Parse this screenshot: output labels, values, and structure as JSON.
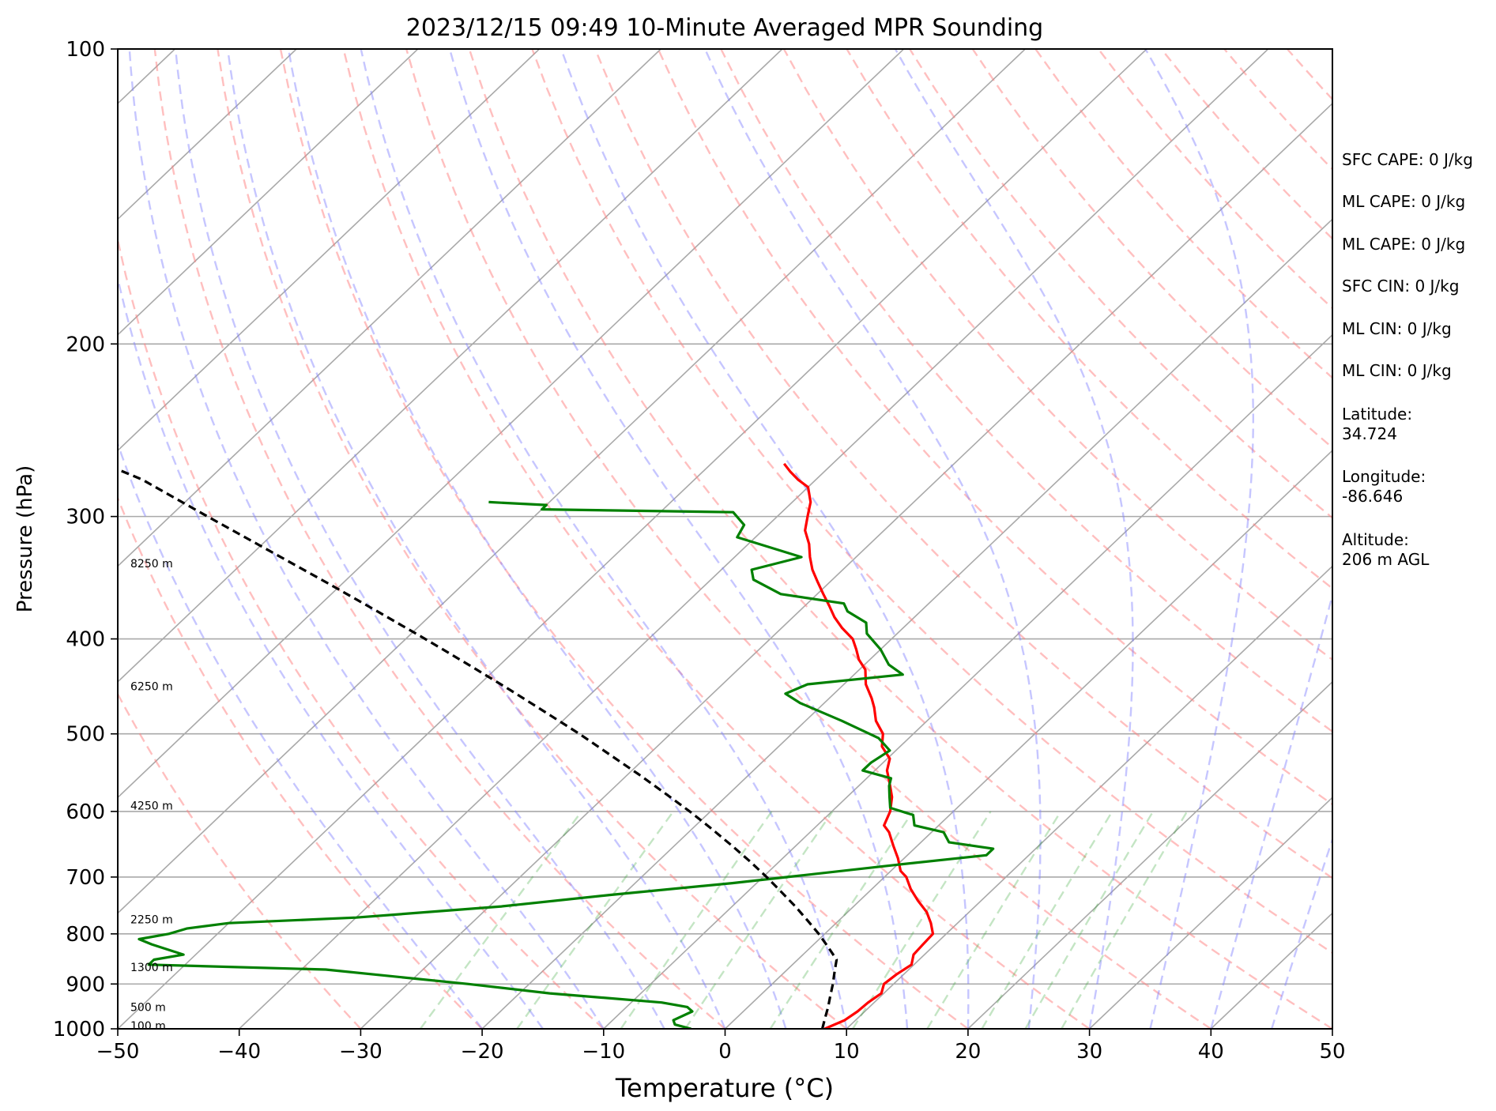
{
  "chart_data": {
    "type": "line",
    "title": "2023/12/15 09:49 10-Minute Averaged MPR Sounding",
    "xlabel": "Temperature (°C)",
    "ylabel": "Pressure (hPa)",
    "xlim": [
      -50,
      50
    ],
    "ylim": [
      1000,
      100
    ],
    "yscale": "log",
    "skew": true,
    "grid": true,
    "xticks": [
      -50,
      -40,
      -30,
      -20,
      -10,
      0,
      10,
      20,
      30,
      40,
      50
    ],
    "xtick_labels": [
      "−50",
      "−40",
      "−30",
      "−20",
      "−10",
      "0",
      "10",
      "20",
      "30",
      "40",
      "50"
    ],
    "yticks": [
      100,
      200,
      300,
      400,
      500,
      600,
      700,
      800,
      900,
      1000
    ],
    "ytick_labels": [
      "100",
      "200",
      "300",
      "400",
      "500",
      "600",
      "700",
      "800",
      "900",
      "1000"
    ],
    "height_labels": [
      {
        "text": "100 m",
        "p": 993
      },
      {
        "text": "500 m",
        "p": 950
      },
      {
        "text": "1300 m",
        "p": 865
      },
      {
        "text": "2250 m",
        "p": 773
      },
      {
        "text": "4250 m",
        "p": 592
      },
      {
        "text": "6250 m",
        "p": 447
      },
      {
        "text": "8250 m",
        "p": 335
      }
    ],
    "series": [
      {
        "key": "temperature",
        "color": "#ff0000",
        "points": [
          [
            8.2,
            1000
          ],
          [
            9.1,
            980
          ],
          [
            9.4,
            960
          ],
          [
            9.5,
            940
          ],
          [
            9.8,
            920
          ],
          [
            9.2,
            900
          ],
          [
            9.4,
            880
          ],
          [
            9.8,
            860
          ],
          [
            9.1,
            840
          ],
          [
            9.0,
            820
          ],
          [
            8.9,
            800
          ],
          [
            7.8,
            780
          ],
          [
            6.5,
            760
          ],
          [
            4.8,
            740
          ],
          [
            3.2,
            720
          ],
          [
            1.8,
            700
          ],
          [
            0.8,
            690
          ],
          [
            -0.5,
            670
          ],
          [
            -2.0,
            650
          ],
          [
            -3.5,
            630
          ],
          [
            -4.5,
            620
          ],
          [
            -5.2,
            600
          ],
          [
            -6.3,
            580
          ],
          [
            -7.8,
            560
          ],
          [
            -9.0,
            545
          ],
          [
            -9.8,
            530
          ],
          [
            -11.5,
            515
          ],
          [
            -12.5,
            500
          ],
          [
            -14.2,
            485
          ],
          [
            -15.5,
            470
          ],
          [
            -16.5,
            460
          ],
          [
            -18.2,
            445
          ],
          [
            -19.5,
            430
          ],
          [
            -20.9,
            420
          ],
          [
            -22.0,
            410
          ],
          [
            -23.2,
            400
          ],
          [
            -25.0,
            390
          ],
          [
            -26.6,
            380
          ],
          [
            -28.0,
            370
          ],
          [
            -29.5,
            360
          ],
          [
            -31.0,
            350
          ],
          [
            -32.5,
            340
          ],
          [
            -33.8,
            330
          ],
          [
            -35.0,
            320
          ],
          [
            -36.5,
            310
          ],
          [
            -37.5,
            300
          ],
          [
            -38.5,
            290
          ],
          [
            -40.0,
            280
          ],
          [
            -41.5,
            275
          ],
          [
            -42.8,
            270
          ],
          [
            -44.0,
            265
          ]
        ]
      },
      {
        "key": "dewpoint",
        "color": "#008000",
        "points": [
          [
            -2.8,
            1000
          ],
          [
            -4.5,
            990
          ],
          [
            -5.0,
            980
          ],
          [
            -4.2,
            960
          ],
          [
            -5.0,
            950
          ],
          [
            -7.5,
            940
          ],
          [
            -17.5,
            920
          ],
          [
            -25.0,
            900
          ],
          [
            -38.0,
            870
          ],
          [
            -53.0,
            860
          ],
          [
            -53.0,
            850
          ],
          [
            -51.0,
            840
          ],
          [
            -54.5,
            820
          ],
          [
            -56.0,
            810
          ],
          [
            -54.0,
            800
          ],
          [
            -53.0,
            790
          ],
          [
            -50.0,
            780
          ],
          [
            -40.0,
            770
          ],
          [
            -29.0,
            750
          ],
          [
            -21.0,
            730
          ],
          [
            -12.0,
            710
          ],
          [
            -8.0,
            700
          ],
          [
            0.0,
            680
          ],
          [
            6.5,
            665
          ],
          [
            6.5,
            655
          ],
          [
            2.3,
            645
          ],
          [
            1.0,
            630
          ],
          [
            -2.0,
            620
          ],
          [
            -3.0,
            605
          ],
          [
            -5.5,
            595
          ],
          [
            -6.5,
            580
          ],
          [
            -7.5,
            565
          ],
          [
            -8.0,
            555
          ],
          [
            -11.0,
            545
          ],
          [
            -11.0,
            535
          ],
          [
            -10.5,
            520
          ],
          [
            -12.5,
            505
          ],
          [
            -17.0,
            485
          ],
          [
            -22.0,
            465
          ],
          [
            -24.0,
            455
          ],
          [
            -23.0,
            445
          ],
          [
            -16.0,
            435
          ],
          [
            -18.0,
            425
          ],
          [
            -20.0,
            410
          ],
          [
            -22.5,
            395
          ],
          [
            -23.5,
            385
          ],
          [
            -26.0,
            375
          ],
          [
            -27.0,
            368
          ],
          [
            -33.0,
            360
          ],
          [
            -36.5,
            348
          ],
          [
            -37.5,
            340
          ],
          [
            -34.5,
            330
          ],
          [
            -41.5,
            315
          ],
          [
            -42.0,
            306
          ],
          [
            -44.0,
            297
          ],
          [
            -60.0,
            295
          ],
          [
            -60.0,
            292
          ],
          [
            -65.0,
            290
          ]
        ]
      },
      {
        "key": "parcel",
        "color": "#000000",
        "points": [
          [
            8.0,
            1000
          ],
          [
            7.3,
            975
          ],
          [
            6.6,
            950
          ],
          [
            5.8,
            925
          ],
          [
            5.0,
            900
          ],
          [
            4.1,
            875
          ],
          [
            3.2,
            850
          ],
          [
            1.4,
            825
          ],
          [
            -0.5,
            800
          ],
          [
            -2.6,
            775
          ],
          [
            -4.8,
            750
          ],
          [
            -7.2,
            725
          ],
          [
            -9.7,
            700
          ],
          [
            -12.4,
            675
          ],
          [
            -15.3,
            650
          ],
          [
            -18.4,
            625
          ],
          [
            -21.7,
            600
          ],
          [
            -25.3,
            575
          ],
          [
            -29.1,
            550
          ],
          [
            -33.2,
            525
          ],
          [
            -37.5,
            500
          ],
          [
            -42.2,
            475
          ],
          [
            -47.2,
            450
          ],
          [
            -52.6,
            425
          ],
          [
            -58.4,
            400
          ],
          [
            -64.7,
            375
          ],
          [
            -71.5,
            350
          ],
          [
            -78.9,
            325
          ],
          [
            -86.9,
            300
          ],
          [
            -95.5,
            275
          ],
          [
            -100.0,
            265
          ]
        ]
      }
    ],
    "annotations": [
      "SFC CAPE: 0 J/kg",
      "ML CAPE: 0 J/kg",
      "ML CAPE: 0 J/kg",
      "SFC CIN: 0 J/kg",
      "ML CIN: 0 J/kg",
      "ML CIN: 0 J/kg",
      "Latitude:",
      "34.724",
      "Longitude:",
      "-86.646",
      "Altitude:",
      "206 m AGL"
    ]
  }
}
